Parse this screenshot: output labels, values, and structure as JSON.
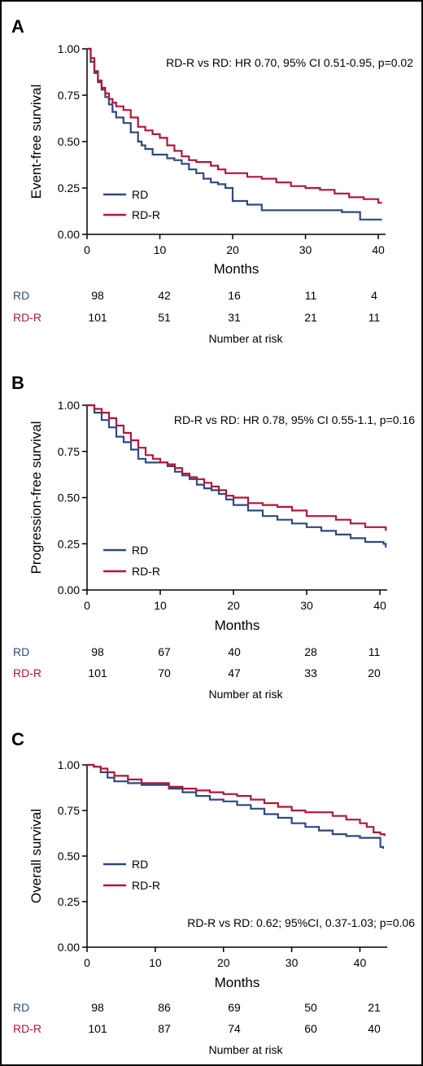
{
  "colors": {
    "rd": "#2e4a7d",
    "rdr": "#b0173a",
    "axis": "#000000"
  },
  "chart_data": [
    {
      "type": "line",
      "panel": "A",
      "ylabel": "Event-free survival",
      "xlabel": "Months",
      "xlim": [
        0,
        41
      ],
      "ylim": [
        0,
        1
      ],
      "xticks": [
        "0",
        "10",
        "20",
        "30",
        "40"
      ],
      "yticks": [
        "0.00",
        "0.25",
        "0.50",
        "0.75",
        "1.00"
      ],
      "annotation": "RD-R vs RD: HR 0.70, 95% CI 0.51-0.95, p=0.02",
      "annotation_position": "top-right",
      "legend_position": "bottom-left",
      "series": [
        {
          "name": "RD",
          "color": "#2e4a7d",
          "x": [
            0,
            0.5,
            1,
            1.5,
            2,
            2.5,
            3,
            3.5,
            4,
            5,
            6,
            7,
            7.5,
            8,
            9,
            10,
            11,
            12,
            13,
            14,
            15,
            16,
            17,
            18,
            19,
            20,
            22,
            24,
            26,
            28,
            30,
            32,
            35,
            36,
            37.5,
            40.5
          ],
          "y": [
            1.0,
            0.93,
            0.87,
            0.82,
            0.78,
            0.74,
            0.7,
            0.66,
            0.63,
            0.6,
            0.55,
            0.5,
            0.48,
            0.46,
            0.43,
            0.43,
            0.41,
            0.4,
            0.38,
            0.35,
            0.33,
            0.3,
            0.28,
            0.27,
            0.25,
            0.18,
            0.16,
            0.13,
            0.13,
            0.13,
            0.13,
            0.13,
            0.12,
            0.12,
            0.08,
            0.08
          ]
        },
        {
          "name": "RD-R",
          "color": "#b0173a",
          "x": [
            0,
            0.5,
            1,
            1.5,
            2,
            2.5,
            3,
            3.5,
            4,
            5,
            6,
            7,
            8,
            9,
            10,
            11,
            12,
            13,
            14,
            15,
            16,
            17,
            18,
            19,
            20,
            22,
            24,
            26,
            28,
            30,
            32,
            34,
            36,
            38,
            40,
            40.5
          ],
          "y": [
            1.0,
            0.95,
            0.88,
            0.83,
            0.79,
            0.76,
            0.73,
            0.71,
            0.69,
            0.67,
            0.63,
            0.58,
            0.56,
            0.54,
            0.52,
            0.48,
            0.45,
            0.42,
            0.4,
            0.39,
            0.39,
            0.37,
            0.35,
            0.33,
            0.33,
            0.31,
            0.3,
            0.28,
            0.26,
            0.25,
            0.24,
            0.22,
            0.2,
            0.19,
            0.17,
            0.17
          ]
        }
      ],
      "risk_table": {
        "caption": "Number at risk",
        "columns": [
          "0",
          "10",
          "20",
          "30",
          "40"
        ],
        "rows": [
          {
            "label": "RD",
            "values": [
              "98",
              "42",
              "16",
              "11",
              "4"
            ]
          },
          {
            "label": "RD-R",
            "values": [
              "101",
              "51",
              "31",
              "21",
              "11"
            ]
          }
        ]
      }
    },
    {
      "type": "line",
      "panel": "B",
      "ylabel": "Progression-free survival",
      "xlabel": "Months",
      "xlim": [
        0,
        41
      ],
      "ylim": [
        0,
        1
      ],
      "xticks": [
        "0",
        "10",
        "20",
        "30",
        "40"
      ],
      "yticks": [
        "0.00",
        "0.25",
        "0.50",
        "0.75",
        "1.00"
      ],
      "annotation": "RD-R vs RD: HR 0.78, 95% CI 0.55-1.1, p=0.16",
      "annotation_position": "top-right",
      "legend_position": "bottom-left",
      "series": [
        {
          "name": "RD",
          "color": "#2e4a7d",
          "x": [
            0,
            1,
            2,
            3,
            4,
            5,
            6,
            7,
            8,
            9,
            10,
            11,
            12,
            13,
            14,
            15,
            16,
            17,
            18,
            19,
            20,
            22,
            24,
            26,
            28,
            30,
            32,
            34,
            36,
            38,
            40.5,
            40.8
          ],
          "y": [
            1.0,
            0.96,
            0.92,
            0.88,
            0.83,
            0.8,
            0.76,
            0.71,
            0.69,
            0.69,
            0.69,
            0.67,
            0.64,
            0.62,
            0.6,
            0.57,
            0.55,
            0.54,
            0.52,
            0.49,
            0.46,
            0.43,
            0.4,
            0.38,
            0.36,
            0.34,
            0.32,
            0.3,
            0.28,
            0.26,
            0.25,
            0.23
          ]
        },
        {
          "name": "RD-R",
          "color": "#b0173a",
          "x": [
            0,
            1,
            2,
            3,
            4,
            5,
            6,
            7,
            8,
            9,
            10,
            11,
            12,
            13,
            14,
            15,
            16,
            17,
            18,
            19,
            20,
            22,
            24,
            26,
            28,
            30,
            32,
            34,
            36,
            38,
            40.8
          ],
          "y": [
            1.0,
            0.98,
            0.96,
            0.93,
            0.89,
            0.85,
            0.81,
            0.77,
            0.73,
            0.71,
            0.69,
            0.68,
            0.66,
            0.63,
            0.61,
            0.6,
            0.58,
            0.56,
            0.54,
            0.51,
            0.5,
            0.47,
            0.46,
            0.45,
            0.43,
            0.4,
            0.4,
            0.38,
            0.36,
            0.34,
            0.32
          ]
        }
      ],
      "risk_table": {
        "caption": "Number at risk",
        "columns": [
          "0",
          "10",
          "20",
          "30",
          "40"
        ],
        "rows": [
          {
            "label": "RD",
            "values": [
              "98",
              "67",
              "40",
              "28",
              "11"
            ]
          },
          {
            "label": "RD-R",
            "values": [
              "101",
              "70",
              "47",
              "33",
              "20"
            ]
          }
        ]
      }
    },
    {
      "type": "line",
      "panel": "C",
      "ylabel": "Overall survival",
      "xlabel": "Months",
      "xlim": [
        0,
        44
      ],
      "ylim": [
        0,
        1
      ],
      "xticks": [
        "0",
        "10",
        "20",
        "30",
        "40"
      ],
      "yticks": [
        "0.00",
        "0.25",
        "0.50",
        "0.75",
        "1.00"
      ],
      "annotation": "RD-R vs RD: 0.62; 95%CI, 0.37-1.03; p=0.06",
      "annotation_position": "bottom-right",
      "legend_position": "middle-left",
      "series": [
        {
          "name": "RD",
          "color": "#2e4a7d",
          "x": [
            0,
            1,
            2,
            3,
            4,
            6,
            8,
            10,
            12,
            14,
            16,
            18,
            20,
            22,
            24,
            26,
            28,
            30,
            32,
            34,
            36,
            38,
            40,
            42,
            43,
            43.4
          ],
          "y": [
            1.0,
            0.99,
            0.96,
            0.93,
            0.91,
            0.9,
            0.89,
            0.89,
            0.87,
            0.85,
            0.83,
            0.81,
            0.8,
            0.78,
            0.76,
            0.73,
            0.71,
            0.68,
            0.66,
            0.64,
            0.62,
            0.61,
            0.6,
            0.6,
            0.55,
            0.54
          ]
        },
        {
          "name": "RD-R",
          "color": "#b0173a",
          "x": [
            0,
            1,
            2,
            3,
            4,
            6,
            8,
            10,
            12,
            14,
            16,
            18,
            20,
            22,
            24,
            26,
            28,
            30,
            32,
            34,
            36,
            38,
            40,
            41,
            42,
            43,
            43.6
          ],
          "y": [
            1.0,
            0.99,
            0.98,
            0.96,
            0.94,
            0.92,
            0.9,
            0.9,
            0.88,
            0.87,
            0.86,
            0.85,
            0.84,
            0.83,
            0.81,
            0.79,
            0.77,
            0.75,
            0.74,
            0.74,
            0.72,
            0.7,
            0.68,
            0.66,
            0.63,
            0.62,
            0.61
          ]
        }
      ],
      "risk_table": {
        "caption": "Number at risk",
        "columns": [
          "0",
          "10",
          "20",
          "30",
          "40"
        ],
        "rows": [
          {
            "label": "RD",
            "values": [
              "98",
              "86",
              "69",
              "50",
              "21"
            ]
          },
          {
            "label": "RD-R",
            "values": [
              "101",
              "87",
              "74",
              "60",
              "40"
            ]
          }
        ]
      }
    }
  ]
}
